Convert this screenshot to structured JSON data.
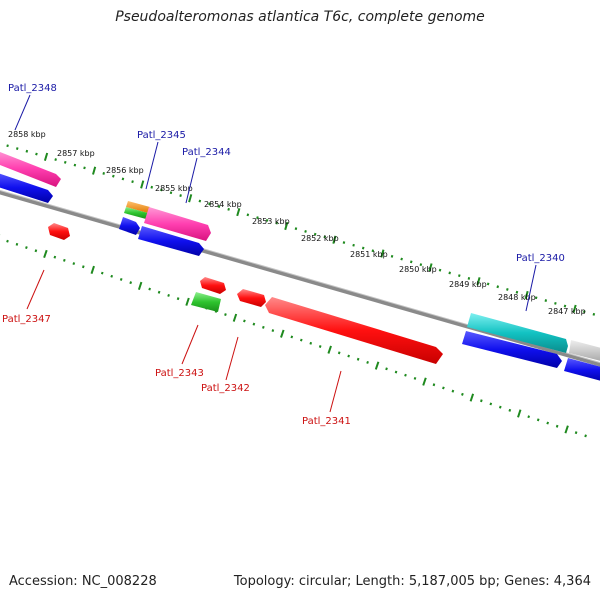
{
  "title": "Pseudoalteromonas atlantica T6c, complete genome",
  "footer": {
    "accession": "Accession: NC_008228",
    "summary": "Topology: circular; Length: 5,187,005 bp; Genes: 4,364"
  },
  "colors": {
    "backbone": "#888888",
    "ticks": "#1f8a1f",
    "forward_label": "#1a1aa6",
    "reverse_label": "#cc1111"
  },
  "kbp_labels": [
    "2858 kbp",
    "2857 kbp",
    "2856 kbp",
    "2855 kbp",
    "2854 kbp",
    "2853 kbp",
    "2852 kbp",
    "2851 kbp",
    "2850 kbp",
    "2849 kbp",
    "2848 kbp",
    "2847 kbp"
  ],
  "gene_labels": {
    "forward": [
      "Patl_2348",
      "Patl_2345",
      "Patl_2344",
      "Patl_2340"
    ],
    "reverse": [
      "Patl_2347",
      "Patl_2343",
      "Patl_2342",
      "Patl_2341"
    ]
  }
}
